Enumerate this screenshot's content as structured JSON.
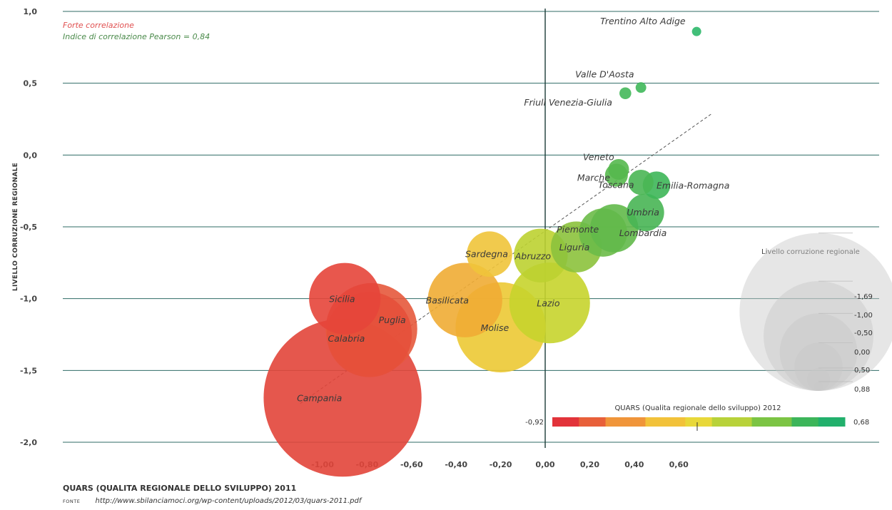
{
  "chart_data": {
    "type": "scatter",
    "xlabel": "QUARS (QUALITA REGIONALE DELLO SVILUPPO) 2011",
    "ylabel": "LIVELLO CORRUZIONE REGIONALE",
    "xlim": [
      -1.1,
      0.75
    ],
    "ylim": [
      -2.0,
      1.0
    ],
    "x_ticks": [
      "-1,00",
      "-0,80",
      "-0,60",
      "-0,40",
      "-0,20",
      "0,00",
      "0,20",
      "0,40",
      "0,60"
    ],
    "x_tick_values": [
      -1.0,
      -0.8,
      -0.6,
      -0.4,
      -0.2,
      0.0,
      0.2,
      0.4,
      0.6
    ],
    "y_ticks": [
      "1,0",
      "0,5",
      "0,0",
      "-0,5",
      "-1,0",
      "-1,5",
      "-2,0"
    ],
    "y_tick_values": [
      1.0,
      0.5,
      0.0,
      -0.5,
      -1.0,
      -1.5,
      -2.0
    ],
    "grid": "horizontal",
    "annotations": {
      "strong": "Forte correlazione",
      "pearson": "Indice di correlazione Pearson = 0,84"
    },
    "trendline": {
      "from": [
        -1.1,
        -1.73
      ],
      "to": [
        0.75,
        0.29
      ]
    },
    "points": [
      {
        "name": "Trentino Alto Adige",
        "x": 0.68,
        "y": 0.86,
        "size": 0.88,
        "color": "#2db86a"
      },
      {
        "name": "Valle D'Aosta",
        "x": 0.43,
        "y": 0.47,
        "size": 0.82,
        "color": "#3fb85a"
      },
      {
        "name": "Friuli Venezia-Giulia",
        "x": 0.36,
        "y": 0.43,
        "size": 0.78,
        "color": "#44b85a"
      },
      {
        "name": "Veneto",
        "x": 0.33,
        "y": -0.1,
        "size": 0.55,
        "color": "#55b84e"
      },
      {
        "name": "Marche",
        "x": 0.32,
        "y": -0.14,
        "size": 0.5,
        "color": "#58b94e"
      },
      {
        "name": "Toscana",
        "x": 0.43,
        "y": -0.19,
        "size": 0.45,
        "color": "#4ab654"
      },
      {
        "name": "Emilia-Romagna",
        "x": 0.5,
        "y": -0.21,
        "size": 0.4,
        "color": "#3db658"
      },
      {
        "name": "Umbria",
        "x": 0.45,
        "y": -0.4,
        "size": 0.2,
        "color": "#48b554"
      },
      {
        "name": "Piemonte",
        "x": 0.26,
        "y": -0.54,
        "size": 0.0,
        "color": "#6cbb48"
      },
      {
        "name": "Lombardia",
        "x": 0.31,
        "y": -0.51,
        "size": 0.0,
        "color": "#62b94a"
      },
      {
        "name": "Liguria",
        "x": 0.14,
        "y": -0.64,
        "size": -0.05,
        "color": "#8cc23c"
      },
      {
        "name": "Abruzzo",
        "x": -0.02,
        "y": -0.7,
        "size": -0.1,
        "color": "#bcd231"
      },
      {
        "name": "Sardegna",
        "x": -0.25,
        "y": -0.69,
        "size": 0.05,
        "color": "#f0c43a"
      },
      {
        "name": "Lazio",
        "x": 0.02,
        "y": -1.03,
        "size": -0.55,
        "color": "#c6d42c"
      },
      {
        "name": "Basilicata",
        "x": -0.36,
        "y": -1.01,
        "size": -0.45,
        "color": "#f0ac34"
      },
      {
        "name": "Molise",
        "x": -0.2,
        "y": -1.2,
        "size": -0.7,
        "color": "#ecc934"
      },
      {
        "name": "Sicilia",
        "x": -0.9,
        "y": -1.0,
        "size": -0.4,
        "color": "#e5453a"
      },
      {
        "name": "Puglia",
        "x": -0.78,
        "y": -1.21,
        "size": -0.72,
        "color": "#e6593c"
      },
      {
        "name": "Calabria",
        "x": -0.79,
        "y": -1.25,
        "size": -0.62,
        "color": "#e6503a"
      },
      {
        "name": "Campania",
        "x": -0.91,
        "y": -1.69,
        "size": -1.69,
        "color": "#e2453a"
      }
    ],
    "size_legend": {
      "title": "Livello corruzione regionale",
      "entries": [
        {
          "label": "-1,69",
          "value": -1.69
        },
        {
          "label": "-1,00",
          "value": -1.0
        },
        {
          "label": "-0,50",
          "value": -0.5
        },
        {
          "label": "0,00",
          "value": 0.0
        },
        {
          "label": "0,50",
          "value": 0.5
        },
        {
          "label": "0,88",
          "value": 0.88
        }
      ]
    },
    "color_legend": {
      "title": "QUARS (Qualita regionale dello sviluppo) 2012",
      "min_label": "-0,92",
      "max_label": "0,68",
      "min": -0.92,
      "max": 0.68,
      "colors": [
        "#e2333a",
        "#e8603a",
        "#f0953a",
        "#f2c23a",
        "#e8d83a",
        "#b8d23a",
        "#7cc444",
        "#3db55a",
        "#22b06c"
      ]
    }
  },
  "source": {
    "title": "QUARS (QUALITA REGIONALE DELLO SVILUPPO) 2011",
    "key": "FONTE",
    "url": "http://www.sbilanciamoci.org/wp-content/uploads/2012/03/quars-2011.pdf"
  }
}
